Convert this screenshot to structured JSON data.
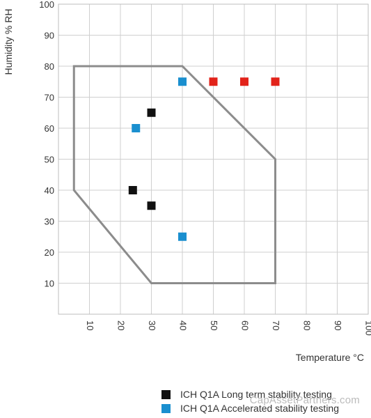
{
  "chart_data": {
    "type": "scatter",
    "xlabel": "Temperature °C",
    "ylabel": "Humidity % RH",
    "xlim": [
      0,
      100
    ],
    "ylim": [
      0,
      100
    ],
    "x_ticks": [
      10,
      20,
      30,
      40,
      50,
      60,
      70,
      80,
      90,
      100
    ],
    "y_ticks": [
      10,
      20,
      30,
      40,
      50,
      60,
      70,
      80,
      90,
      100
    ],
    "grid": true,
    "region_polygon": [
      [
        5,
        80
      ],
      [
        40,
        80
      ],
      [
        70,
        50
      ],
      [
        70,
        10
      ],
      [
        30,
        10
      ],
      [
        5,
        40
      ]
    ],
    "region_color": "#8c8c8c",
    "series": [
      {
        "name": "ICH Q1A Long term stability testing",
        "color": "#111111",
        "points": [
          [
            30,
            65
          ],
          [
            24,
            40
          ],
          [
            30,
            35
          ]
        ]
      },
      {
        "name": "ICH Q1A Accelerated stability testing",
        "color": "#1a8fcf",
        "points": [
          [
            40,
            75
          ],
          [
            25,
            60
          ],
          [
            40,
            25
          ]
        ]
      },
      {
        "name": "",
        "color": "#e2231a",
        "points": [
          [
            50,
            75
          ],
          [
            60,
            75
          ],
          [
            70,
            75
          ]
        ]
      }
    ],
    "legend_position": "bottom-right"
  },
  "watermark": "CapAssetPartners.com"
}
